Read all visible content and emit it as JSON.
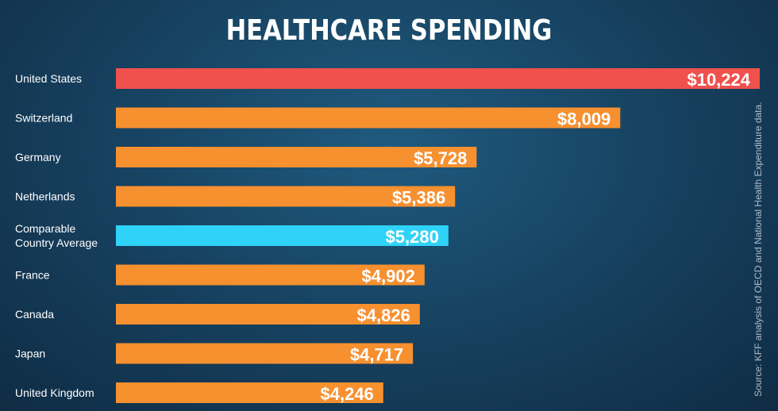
{
  "chart_data": {
    "type": "bar",
    "orientation": "horizontal",
    "title": "HEALTHCARE SPENDING",
    "categories": [
      "United States",
      "Switzerland",
      "Germany",
      "Netherlands",
      "Comparable\nCountry Average",
      "France",
      "Canada",
      "Japan",
      "United Kingdom"
    ],
    "values": [
      10224,
      8009,
      5728,
      5386,
      5280,
      4902,
      4826,
      4717,
      4246
    ],
    "value_labels": [
      "$10,224",
      "$8,009",
      "$5,728",
      "$5,386",
      "$5,280",
      "$4,902",
      "$4,826",
      "$4,717",
      "$4,246"
    ],
    "bar_colors": [
      "#f0514d",
      "#f7902f",
      "#f7902f",
      "#f7902f",
      "#2fd3f7",
      "#f7902f",
      "#f7902f",
      "#f7902f",
      "#f7902f"
    ],
    "xlim": [
      0,
      10224
    ],
    "xlabel": "",
    "ylabel": "",
    "grid": false
  },
  "source_note": "Source: KFF analysis of OECD and National Health Expenditure data."
}
